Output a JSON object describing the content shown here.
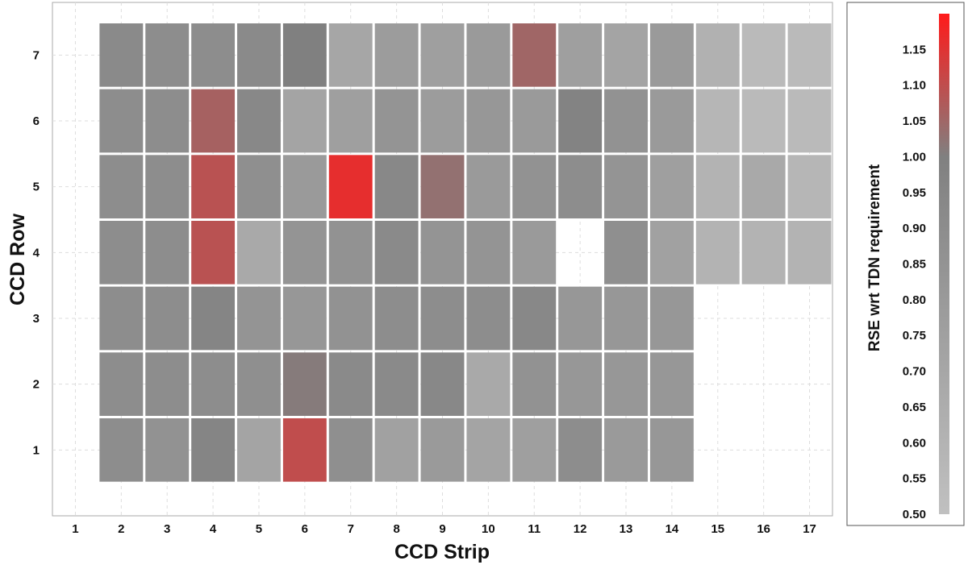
{
  "chart_data": {
    "type": "heatmap",
    "xlabel": "CCD Strip",
    "ylabel": "CCD Row",
    "x_ticks": [
      "1",
      "2",
      "3",
      "4",
      "5",
      "6",
      "7",
      "8",
      "9",
      "10",
      "11",
      "12",
      "13",
      "14",
      "15",
      "16",
      "17"
    ],
    "y_ticks": [
      "1",
      "2",
      "3",
      "4",
      "5",
      "6",
      "7"
    ],
    "xlim": [
      0.5,
      17.5
    ],
    "ylim": [
      0.0,
      7.8
    ],
    "grid": true,
    "colorbar": {
      "label": "RSE wrt TDN requirement",
      "range": [
        0.5,
        1.2
      ],
      "ticks": [
        "0.50",
        "0.55",
        "0.60",
        "0.65",
        "0.70",
        "0.75",
        "0.80",
        "0.85",
        "0.90",
        "0.95",
        "1.00",
        "1.05",
        "1.10",
        "1.15"
      ],
      "colors": {
        "low": "#c0c0c0",
        "mid": "#808080",
        "mid_value": 1.0,
        "high": "#ff1a1a"
      }
    },
    "rows": [
      {
        "row": 7,
        "strips": [
          2,
          3,
          4,
          5,
          6,
          7,
          8,
          9,
          10,
          11,
          12,
          13,
          14,
          15,
          16,
          17
        ],
        "values": [
          0.92,
          0.9,
          0.9,
          0.92,
          1.0,
          0.7,
          0.78,
          0.76,
          0.8,
          1.05,
          0.76,
          0.72,
          0.8,
          0.62,
          0.55,
          0.55
        ]
      },
      {
        "row": 6,
        "strips": [
          2,
          3,
          4,
          5,
          6,
          7,
          8,
          9,
          10,
          11,
          12,
          13,
          14,
          15,
          16,
          17
        ],
        "values": [
          0.9,
          0.9,
          1.06,
          0.94,
          0.72,
          0.76,
          0.84,
          0.78,
          0.82,
          0.8,
          0.98,
          0.86,
          0.8,
          0.58,
          0.55,
          0.55
        ]
      },
      {
        "row": 5,
        "strips": [
          2,
          3,
          4,
          5,
          6,
          7,
          8,
          9,
          10,
          11,
          12,
          13,
          14,
          15,
          16,
          17
        ],
        "values": [
          0.9,
          0.9,
          1.09,
          0.88,
          0.8,
          1.16,
          0.94,
          1.03,
          0.8,
          0.86,
          0.9,
          0.84,
          0.76,
          0.6,
          0.68,
          0.58
        ]
      },
      {
        "row": 4,
        "strips": [
          2,
          3,
          4,
          5,
          6,
          7,
          8,
          9,
          10,
          11,
          13,
          14,
          15,
          16,
          17
        ],
        "values": [
          0.9,
          0.9,
          1.09,
          0.68,
          0.84,
          0.86,
          0.92,
          0.84,
          0.84,
          0.8,
          0.88,
          0.74,
          0.6,
          0.6,
          0.6
        ]
      },
      {
        "row": 3,
        "strips": [
          2,
          3,
          4,
          5,
          6,
          7,
          8,
          9,
          10,
          11,
          12,
          13,
          14
        ],
        "values": [
          0.9,
          0.9,
          0.96,
          0.84,
          0.82,
          0.86,
          0.9,
          0.9,
          0.9,
          0.94,
          0.82,
          0.82,
          0.82
        ]
      },
      {
        "row": 2,
        "strips": [
          2,
          3,
          4,
          5,
          6,
          7,
          8,
          9,
          10,
          11,
          12,
          13,
          14
        ],
        "values": [
          0.9,
          0.9,
          0.9,
          0.88,
          1.01,
          0.92,
          0.92,
          0.94,
          0.68,
          0.86,
          0.82,
          0.82,
          0.82
        ]
      },
      {
        "row": 1,
        "strips": [
          2,
          3,
          4,
          5,
          6,
          7,
          8,
          9,
          10,
          11,
          12,
          13,
          14
        ],
        "values": [
          0.9,
          0.86,
          0.96,
          0.72,
          1.1,
          0.88,
          0.74,
          0.8,
          0.72,
          0.76,
          0.9,
          0.8,
          0.82
        ]
      }
    ]
  }
}
